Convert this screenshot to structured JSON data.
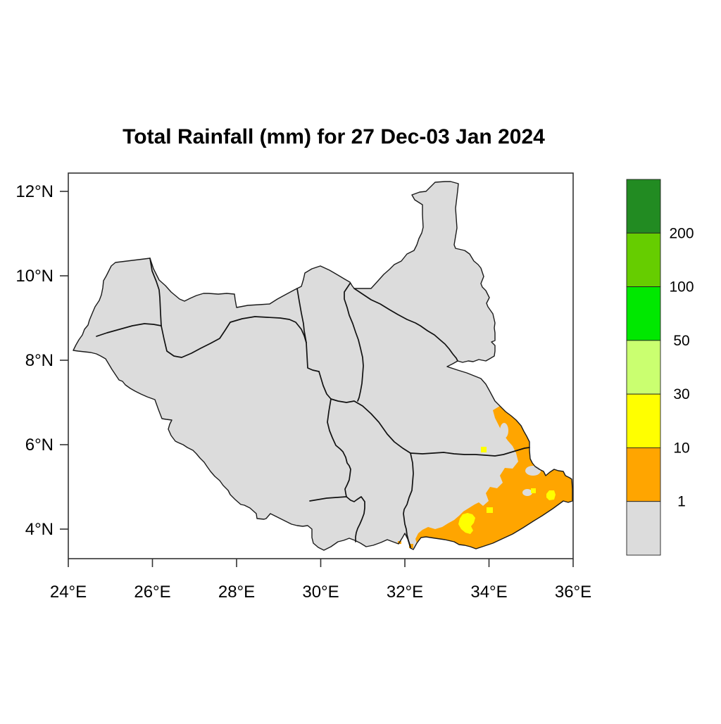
{
  "title": "Total Rainfall (mm) for 27 Dec-03 Jan 2024",
  "x_axis": {
    "tick_labels": [
      "24°E",
      "26°E",
      "28°E",
      "30°E",
      "32°E",
      "34°E",
      "36°E"
    ],
    "tick_values": [
      24,
      26,
      28,
      30,
      32,
      34,
      36
    ]
  },
  "y_axis": {
    "tick_labels": [
      "12°N",
      "10°N",
      "8°N",
      "6°N",
      "4°N"
    ],
    "tick_values": [
      12,
      10,
      8,
      6,
      4
    ]
  },
  "colorbar": {
    "boundary_labels": [
      "200",
      "100",
      "50",
      "30",
      "10",
      "1"
    ],
    "bins_top_to_bottom": [
      {
        "range": "above 200 mm",
        "color": "#228B22"
      },
      {
        "range": "100-200 mm",
        "color": "#66CD00"
      },
      {
        "range": "50-100 mm",
        "color": "#00E800"
      },
      {
        "range": "30-50 mm",
        "color": "#CAFF70"
      },
      {
        "range": "10-30 mm",
        "color": "#FFFF00"
      },
      {
        "range": "1-10 mm",
        "color": "#FFA500"
      },
      {
        "range": "below 1 mm",
        "color": "#DCDCDC"
      }
    ]
  },
  "map": {
    "region": "South Sudan with state boundaries",
    "land_fill_color": "#DCDCDC",
    "border_color": "#111111",
    "background_color": "#FFFFFF"
  },
  "chart_data": {
    "type": "heatmap",
    "title": "Total Rainfall (mm) for 27 Dec-03 Jan 2024",
    "variable": "total rainfall",
    "units": "mm",
    "period": "27 Dec-03 Jan 2024",
    "region": "South Sudan",
    "x_ticks_deg_east": [
      24,
      26,
      28,
      30,
      32,
      34,
      36
    ],
    "y_ticks_deg_north": [
      12,
      10,
      8,
      6,
      4
    ],
    "color_bins": [
      {
        "min": 200,
        "max": null,
        "color": "#228B22"
      },
      {
        "min": 100,
        "max": 200,
        "color": "#66CD00"
      },
      {
        "min": 50,
        "max": 100,
        "color": "#00E800"
      },
      {
        "min": 30,
        "max": 50,
        "color": "#CAFF70"
      },
      {
        "min": 10,
        "max": 30,
        "color": "#FFFF00"
      },
      {
        "min": 1,
        "max": 10,
        "color": "#FFA500"
      },
      {
        "min": 0,
        "max": 1,
        "color": "#DCDCDC"
      }
    ],
    "observed_pattern": [
      "Nearly all of South Sudan below 1 mm (gray)",
      "Band of 1-10 mm rainfall (orange) along the southeastern border of Eastern Equatoria, the Ilemi triangle near 35-36E / 4.5-5.5N, and along the Kenya/Uganda border up to about 6.7N on the Ethiopian border",
      "Small 10-30 mm patches (yellow) near 33.3E 4N, 35.4E 5N, and scattered cells near the southeast tip"
    ],
    "legend_position": "right",
    "grid": false
  }
}
